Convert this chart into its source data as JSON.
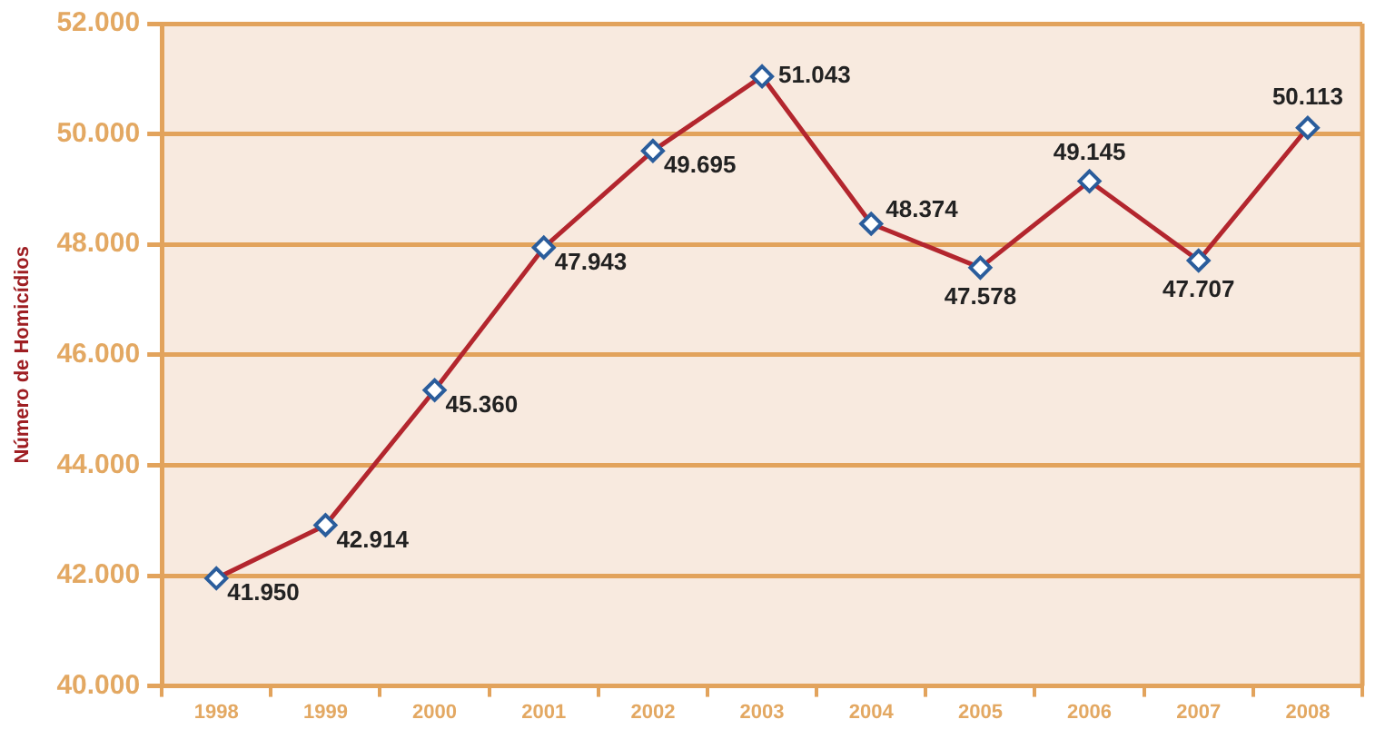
{
  "chart_data": {
    "type": "line",
    "ylabel": "Número de Homicídios",
    "categories": [
      "1998",
      "1999",
      "2000",
      "2001",
      "2002",
      "2003",
      "2004",
      "2005",
      "2006",
      "2007",
      "2008"
    ],
    "series": [
      {
        "color": "#b3262e",
        "values": [
          41950,
          42914,
          45360,
          47943,
          49695,
          51043,
          48374,
          47578,
          49145,
          47707,
          50113
        ],
        "value_labels": [
          "41.950",
          "42.914",
          "45.360",
          "47.943",
          "49.695",
          "51.043",
          "48.374",
          "47.578",
          "49.145",
          "47.707",
          "50.113"
        ]
      }
    ],
    "ylim": [
      40000,
      52000
    ],
    "yticks": [
      {
        "value": 40000,
        "label": "40.000"
      },
      {
        "value": 42000,
        "label": "42.000"
      },
      {
        "value": 44000,
        "label": "44.000"
      },
      {
        "value": 46000,
        "label": "46.000"
      },
      {
        "value": 48000,
        "label": "48.000"
      },
      {
        "value": 50000,
        "label": "50.000"
      },
      {
        "value": 52000,
        "label": "52.000"
      }
    ],
    "grid": "y",
    "marker": "diamond",
    "line_style": "solid"
  }
}
